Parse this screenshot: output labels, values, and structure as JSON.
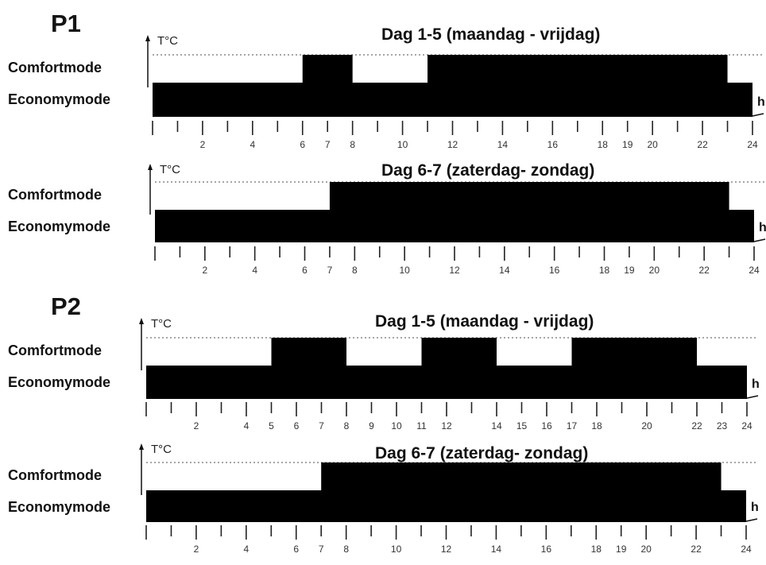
{
  "programs": [
    {
      "label": "P1",
      "charts": [
        {
          "title": "Dag 1-5 (maandag - vrijdag)",
          "y_axis_label": "T°C",
          "x_axis_label": "h",
          "levels": [
            "Comfortmode",
            "Economymode"
          ],
          "comfort_periods": [
            [
              6,
              8
            ],
            [
              11,
              23
            ]
          ],
          "tick_labels": [
            "2",
            "4",
            "6",
            "7",
            "8",
            "10",
            "12",
            "14",
            "16",
            "18",
            "19",
            "20",
            "22",
            "24"
          ]
        },
        {
          "title": "Dag 6-7 (zaterdag- zondag)",
          "y_axis_label": "T°C",
          "x_axis_label": "h",
          "levels": [
            "Comfortmode",
            "Economymode"
          ],
          "comfort_periods": [
            [
              7,
              23
            ]
          ],
          "tick_labels": [
            "2",
            "4",
            "6",
            "7",
            "8",
            "10",
            "12",
            "14",
            "16",
            "18",
            "19",
            "20",
            "22",
            "24"
          ]
        }
      ]
    },
    {
      "label": "P2",
      "charts": [
        {
          "title": "Dag 1-5 (maandag - vrijdag)",
          "y_axis_label": "T°C",
          "x_axis_label": "h",
          "levels": [
            "Comfortmode",
            "Economymode"
          ],
          "comfort_periods": [
            [
              5,
              8
            ],
            [
              11,
              14
            ],
            [
              17,
              22
            ]
          ],
          "tick_labels": [
            "2",
            "4",
            "5",
            "6",
            "7",
            "8",
            "9",
            "10",
            "11",
            "12",
            "14",
            "15",
            "16",
            "17",
            "18",
            "20",
            "22",
            "23",
            "24"
          ]
        },
        {
          "title": "Dag 6-7 (zaterdag- zondag)",
          "y_axis_label": "T°C",
          "x_axis_label": "h",
          "levels": [
            "Comfortmode",
            "Economymode"
          ],
          "comfort_periods": [
            [
              7,
              23
            ]
          ],
          "tick_labels": [
            "2",
            "4",
            "6",
            "7",
            "8",
            "10",
            "12",
            "14",
            "16",
            "18",
            "19",
            "20",
            "22",
            "24"
          ]
        }
      ]
    }
  ]
}
